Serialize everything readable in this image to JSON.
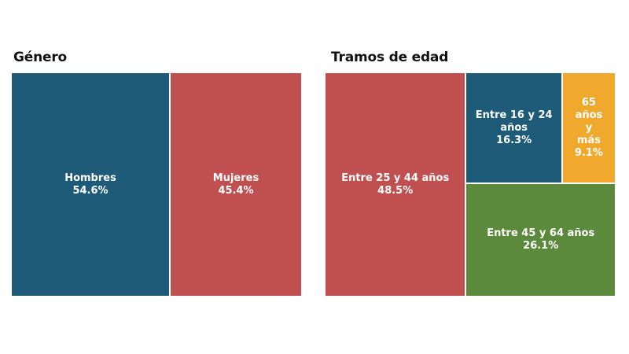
{
  "chart_data": [
    {
      "type": "treemap",
      "title": "Género",
      "items": [
        {
          "label": "Hombres",
          "value": 54.6,
          "value_label": "54.6%",
          "color": "#1d5b79"
        },
        {
          "label": "Mujeres",
          "value": 45.4,
          "value_label": "45.4%",
          "color": "#c0504f"
        }
      ]
    },
    {
      "type": "treemap",
      "title": "Tramos de edad",
      "items": [
        {
          "label": "Entre 25 y 44 años",
          "value": 48.5,
          "value_label": "48.5%",
          "color": "#c0504f"
        },
        {
          "label": "Entre 16 y 24 años",
          "value": 16.3,
          "value_label": "16.3%",
          "color": "#1d5b79"
        },
        {
          "label": "65 años y más",
          "value": 9.1,
          "value_label": "9.1%",
          "color": "#f0a92c"
        },
        {
          "label": "Entre 45 y 64 años",
          "value": 26.1,
          "value_label": "26.1%",
          "color": "#5b8a3c"
        }
      ]
    }
  ]
}
